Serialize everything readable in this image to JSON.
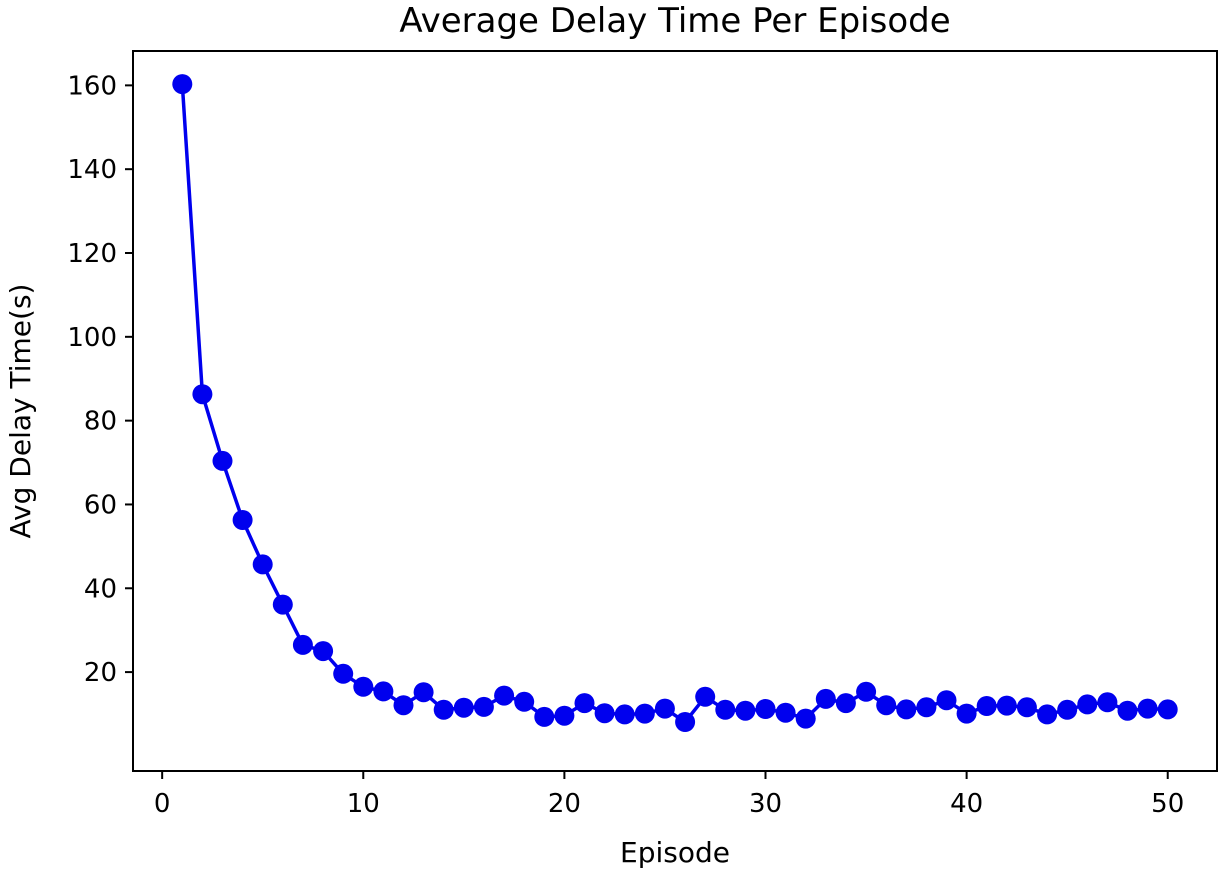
{
  "chart_data": {
    "type": "line",
    "title": "Average Delay Time Per Episode",
    "xlabel": "Episode",
    "ylabel": "Avg Delay Time(s)",
    "xlim": [
      -1.45,
      52.45
    ],
    "ylim": [
      -3.6,
      168.2
    ],
    "xticks": [
      0,
      10,
      20,
      30,
      40,
      50
    ],
    "yticks": [
      20,
      40,
      60,
      80,
      100,
      120,
      140,
      160
    ],
    "grid": false,
    "legend": "none",
    "line_color": "#0000ee",
    "marker": "circle",
    "series": [
      {
        "x": [
          1,
          2,
          3,
          4,
          5,
          6,
          7,
          8,
          9,
          10,
          11,
          12,
          13,
          14,
          15,
          16,
          17,
          18,
          19,
          20,
          21,
          22,
          23,
          24,
          25,
          26,
          27,
          28,
          29,
          30,
          31,
          32,
          33,
          34,
          35,
          36,
          37,
          38,
          39,
          40,
          41,
          42,
          43,
          44,
          45,
          46,
          47,
          48,
          49,
          50
        ],
        "values": [
          160.3,
          86.3,
          70.4,
          56.3,
          45.7,
          36.1,
          26.5,
          25.0,
          19.6,
          16.5,
          15.4,
          12.1,
          15.2,
          11.0,
          11.5,
          11.7,
          14.4,
          12.9,
          9.3,
          9.6,
          12.6,
          10.2,
          9.9,
          10.1,
          11.3,
          8.1,
          14.1,
          11.0,
          10.8,
          11.2,
          10.3,
          8.9,
          13.6,
          12.6,
          15.3,
          12.1,
          11.1,
          11.6,
          13.3,
          10.1,
          11.9,
          12.0,
          11.6,
          9.9,
          11.0,
          12.3,
          12.8,
          10.8,
          11.3,
          11.1
        ]
      }
    ]
  }
}
